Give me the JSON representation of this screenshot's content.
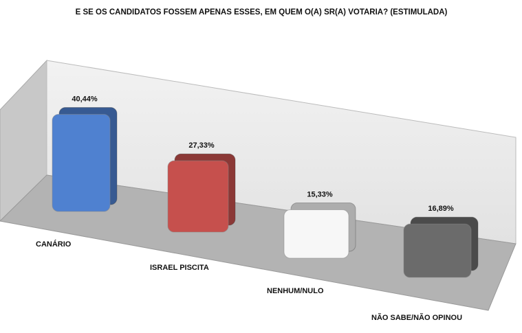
{
  "chart_data": {
    "type": "bar3d",
    "title": "E SE OS CANDIDATOS FOSSEM APENAS ESSES, EM QUEM O(A) SR(A) VOTARIA? (ESTIMULADA)",
    "categories": [
      "CANÁRIO",
      "ISRAEL PISCITA",
      "NENHUM/NULO",
      "NÃO SABE/NÃO OPINOU"
    ],
    "values": [
      40.44,
      27.33,
      15.33,
      16.89
    ],
    "value_labels": [
      "40,44%",
      "27,33%",
      "15,33%",
      "16,89%"
    ],
    "colors": [
      "#4f81d0",
      "#c6504d",
      "#f7f7f7",
      "#6b6b6b"
    ]
  }
}
